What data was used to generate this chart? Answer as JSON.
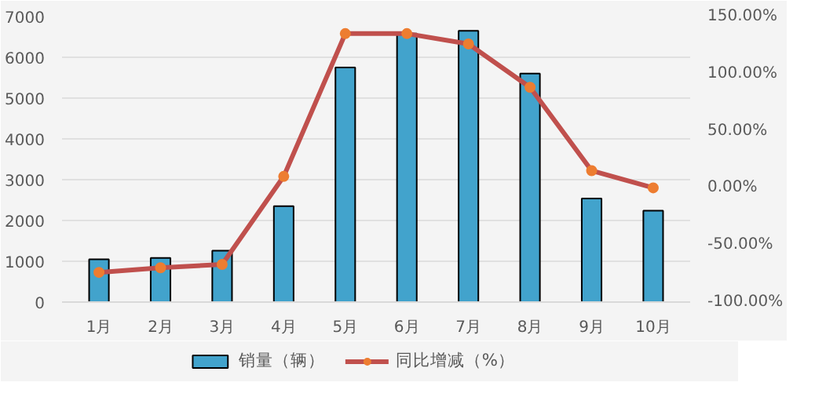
{
  "chart_data": {
    "type": "bar",
    "categories": [
      "1月",
      "2月",
      "3月",
      "4月",
      "5月",
      "6月",
      "7月",
      "8月",
      "9月",
      "10月"
    ],
    "series": [
      {
        "name": "销量（辆）",
        "color": "#42a3cc",
        "values": [
          1050,
          1080,
          1260,
          2350,
          5750,
          6580,
          6650,
          5600,
          2540,
          2240
        ]
      },
      {
        "name": "同比增减（%）",
        "type": "line",
        "axis": "y2",
        "color": "#c0504d",
        "marker": "circle",
        "values": [
          -74,
          -70,
          -67,
          10,
          135,
          135,
          126,
          88,
          15,
          0
        ]
      }
    ],
    "ylim": [
      0,
      7000
    ],
    "yticks": [
      0,
      1000,
      2000,
      3000,
      4000,
      5000,
      6000,
      7000
    ],
    "y2lim": [
      -100,
      150
    ],
    "y2ticks": [
      {
        "value": -100,
        "label": "-100.00%"
      },
      {
        "value": -50,
        "label": "-50.00%"
      },
      {
        "value": 0,
        "label": "0.00%"
      },
      {
        "value": 50,
        "label": "50.00%"
      },
      {
        "value": 100,
        "label": "100.00%"
      },
      {
        "value": 150,
        "label": "150.00%"
      }
    ],
    "grid": "y",
    "legend": "bottom"
  }
}
